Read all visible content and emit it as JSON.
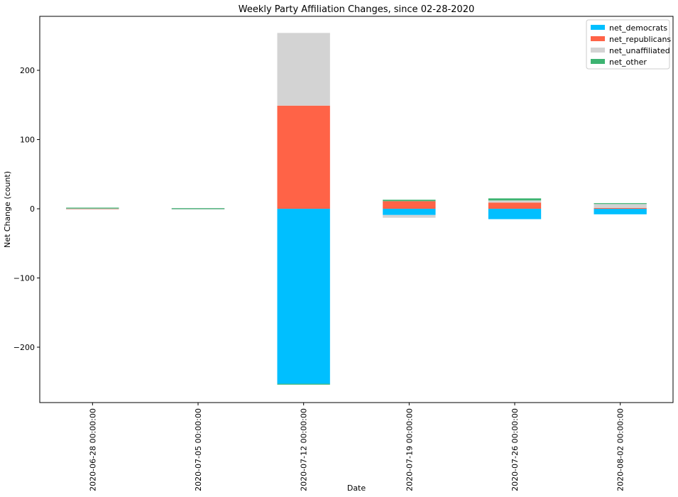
{
  "chart_data": {
    "type": "bar",
    "stacked": true,
    "title": "Weekly Party Affiliation Changes, since 02-28-2020",
    "xlabel": "Date",
    "ylabel": "Net Change (count)",
    "ylim": [
      -280,
      278
    ],
    "yticks": [
      -200,
      -100,
      0,
      100,
      200
    ],
    "ytick_labels": [
      "−200",
      "−100",
      "0",
      "100",
      "200"
    ],
    "categories": [
      "2020-06-28 00:00:00",
      "2020-07-05 00:00:00",
      "2020-07-12 00:00:00",
      "2020-07-19 00:00:00",
      "2020-07-26 00:00:00",
      "2020-08-02 00:00:00"
    ],
    "series": [
      {
        "name": "net_democrats",
        "color": "#00bfff",
        "values": [
          0,
          0,
          -253,
          -9,
          -15,
          -8
        ]
      },
      {
        "name": "net_republicans",
        "color": "#ff6347",
        "values": [
          0,
          0,
          149,
          11,
          9,
          1
        ]
      },
      {
        "name": "net_unaffiliated",
        "color": "#d3d3d3",
        "values": [
          1,
          0,
          105,
          -4,
          3,
          6
        ]
      },
      {
        "name": "net_other",
        "color": "#3cb371",
        "values": [
          0,
          0.3,
          -1,
          2,
          3,
          1
        ]
      }
    ],
    "legend": {
      "placement": "top-right"
    },
    "grid": false
  }
}
